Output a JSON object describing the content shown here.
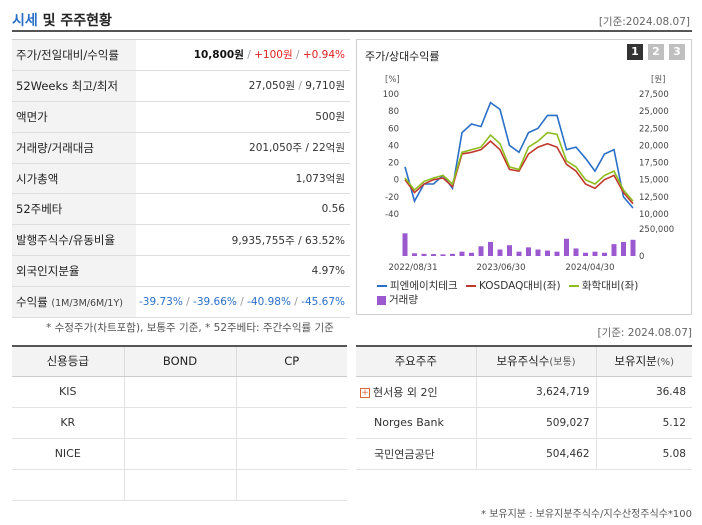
{
  "header": {
    "title_highlight": "시세",
    "title_rest": " 및 주주현황",
    "asof": "[기준:2024.08.07]"
  },
  "quote": {
    "price_label": "주가/전일대비/수익률",
    "price": "10,800원",
    "change": "+100원",
    "change_pct": "+0.94%",
    "week52_label": "52Weeks 최고/최저",
    "week52_high": "27,050원",
    "week52_low": "9,710원",
    "par_label": "액면가",
    "par_value": "500원",
    "volume_label": "거래량/거래대금",
    "volume_value": "201,050주 / 22억원",
    "mcap_label": "시가총액",
    "mcap_value": "1,073억원",
    "beta_label": "52주베타",
    "beta_value": "0.56",
    "shares_label": "발행주식수/유동비율",
    "shares_value": "9,935,755주 / 63.52%",
    "foreign_label": "외국인지분율",
    "foreign_value": "4.97%",
    "returns_label": "수익률",
    "returns_sub": "(1M/3M/6M/1Y)",
    "r1m": "-39.73%",
    "r3m": "-39.66%",
    "r6m": "-40.98%",
    "r1y": "-45.67%",
    "note": "* 수정주가(차트포함), 보통주 기준, * 52주베타: 주간수익률 기준"
  },
  "chart_panel": {
    "title": "주가/상대수익률",
    "tabs": [
      "1",
      "2",
      "3"
    ],
    "active_tab": "1"
  },
  "chart_data": {
    "type": "line",
    "left_unit": "[%]",
    "right_unit": "[원]",
    "left_ticks": [
      "100",
      "80",
      "60",
      "40",
      "20",
      "0",
      "-20",
      "-40"
    ],
    "right_ticks": [
      "27,500",
      "25,000",
      "22,500",
      "20,000",
      "17,500",
      "15,000",
      "12,500",
      "10,000"
    ],
    "volume_ticks": [
      "250,000",
      "0"
    ],
    "x_ticks": [
      "2022/08/31",
      "2023/06/30",
      "2024/04/30"
    ],
    "ylim_left": [
      -40,
      100
    ],
    "ylim_volume": [
      0,
      250000
    ],
    "series": [
      {
        "name": "피엔에이치테크",
        "color": "#2a6fc7",
        "values": [
          15,
          -25,
          -5,
          -5,
          5,
          -10,
          55,
          65,
          62,
          90,
          82,
          40,
          32,
          55,
          60,
          75,
          75,
          35,
          38,
          25,
          10,
          30,
          35,
          -20,
          -33
        ]
      },
      {
        "name": "KOSDAQ대비(좌)",
        "color": "#c0392b",
        "values": [
          0,
          -15,
          -5,
          0,
          2,
          -8,
          30,
          32,
          35,
          45,
          35,
          12,
          10,
          30,
          38,
          42,
          38,
          18,
          10,
          -5,
          -10,
          0,
          5,
          -15,
          -28
        ]
      },
      {
        "name": "화학대비(좌)",
        "color": "#8fbc1f",
        "values": [
          2,
          -12,
          -2,
          2,
          5,
          -5,
          32,
          35,
          38,
          52,
          42,
          15,
          12,
          38,
          45,
          55,
          53,
          22,
          15,
          0,
          -5,
          5,
          10,
          -12,
          -25
        ]
      },
      {
        "name": "거래량",
        "color": "#9b59d0",
        "values": [
          210000,
          25000,
          20000,
          18000,
          15000,
          20000,
          40000,
          30000,
          90000,
          130000,
          60000,
          100000,
          40000,
          80000,
          60000,
          50000,
          40000,
          160000,
          70000,
          30000,
          40000,
          30000,
          110000,
          130000,
          150000
        ]
      }
    ]
  },
  "asof_mid": "[기준: 2024.08.07]",
  "credit": {
    "headers": [
      "신용등급",
      "BOND",
      "CP"
    ],
    "rows": [
      [
        "KIS",
        "",
        ""
      ],
      [
        "KR",
        "",
        ""
      ],
      [
        "NICE",
        "",
        ""
      ],
      [
        "",
        "",
        ""
      ]
    ]
  },
  "holders": {
    "headers": [
      "주요주주",
      "보유주식수",
      "(보통)",
      "보유지분",
      "(%)"
    ],
    "rows": [
      {
        "name": "현서용 외 2인",
        "shares": "3,624,719",
        "pct": "36.48",
        "expand": "+"
      },
      {
        "name": "Norges Bank",
        "shares": "509,027",
        "pct": "5.12",
        "expand": ""
      },
      {
        "name": "국민연금공단",
        "shares": "504,462",
        "pct": "5.08",
        "expand": ""
      }
    ],
    "note": "* 보유지분 : 보유지분주식수/지수산정주식수*100"
  }
}
